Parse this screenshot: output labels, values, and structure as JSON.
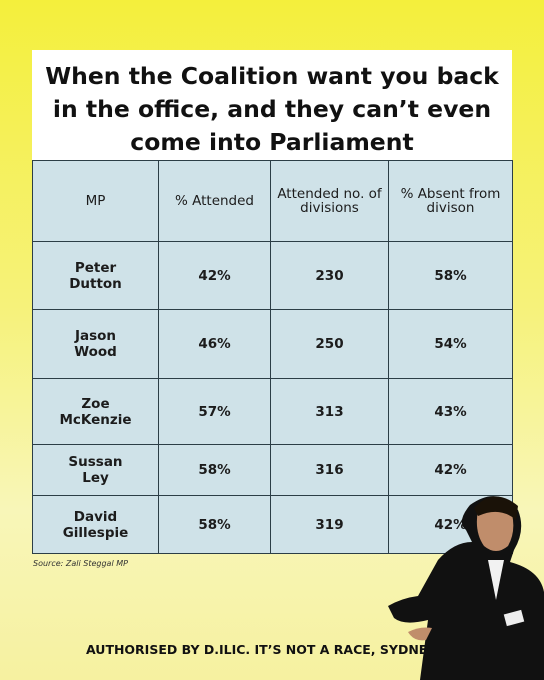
{
  "title": "When the Coalition want you back in the office, and they can’t even come into Parliament",
  "table": {
    "headers": [
      "MP",
      "% Attended",
      "Attended no. of divisions",
      "% Absent from divison"
    ],
    "rows": [
      [
        "Peter Dutton",
        "42%",
        "230",
        "58%"
      ],
      [
        "Jason Wood",
        "46%",
        "250",
        "54%"
      ],
      [
        "Zoe McKenzie",
        "57%",
        "313",
        "43%"
      ],
      [
        "Sussan Ley",
        "58%",
        "316",
        "42%"
      ],
      [
        "David Gillespie",
        "58%",
        "319",
        "42%"
      ]
    ]
  },
  "source": "Source: Zali Steggal MP",
  "footer": "AUTHORISED BY D.ILIC. IT’S NOT A RACE, SYDNE"
}
